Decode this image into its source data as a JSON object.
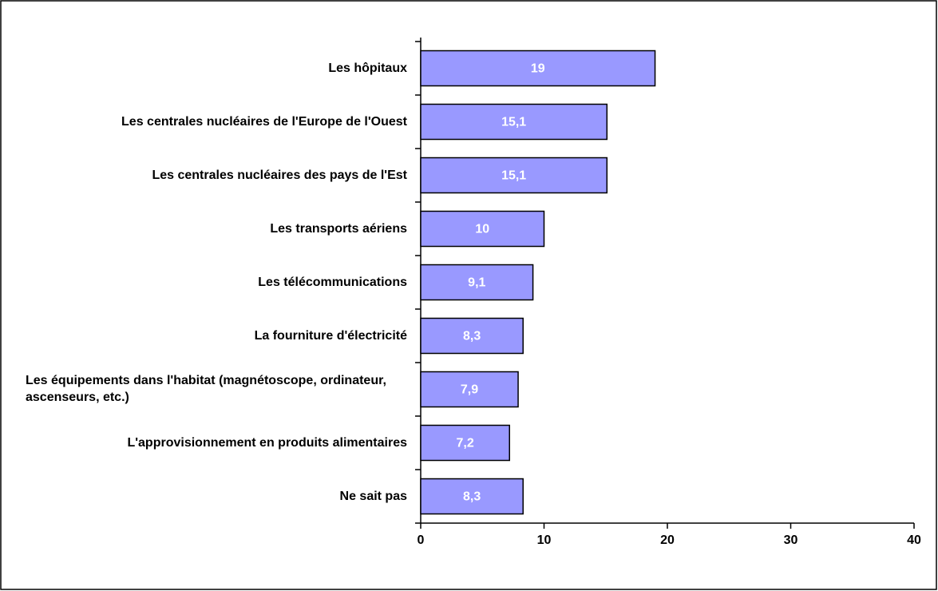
{
  "chart_data": {
    "type": "hbar",
    "categories": [
      "Les hôpitaux",
      "Les centrales nucléaires de l'Europe de l'Ouest",
      "Les centrales nucléaires des pays de l'Est",
      "Les transports aériens",
      "Les télécommunications",
      "La fourniture d'électricité",
      "Les équipements dans l'habitat (magnétoscope, ordinateur, ascenseurs, etc.)",
      "L'approvisionnement en produits alimentaires",
      "Ne sait pas"
    ],
    "values": [
      19,
      15.1,
      15.1,
      10,
      9.1,
      8.3,
      7.9,
      7.2,
      8.3
    ],
    "value_labels": [
      "19",
      "15,1",
      "15,1",
      "10",
      "9,1",
      "8,3",
      "7,9",
      "7,2",
      "8,3"
    ],
    "color": "#9999ff",
    "xlim": [
      0,
      40
    ],
    "xticks": [
      0,
      10,
      20,
      30,
      40
    ]
  }
}
